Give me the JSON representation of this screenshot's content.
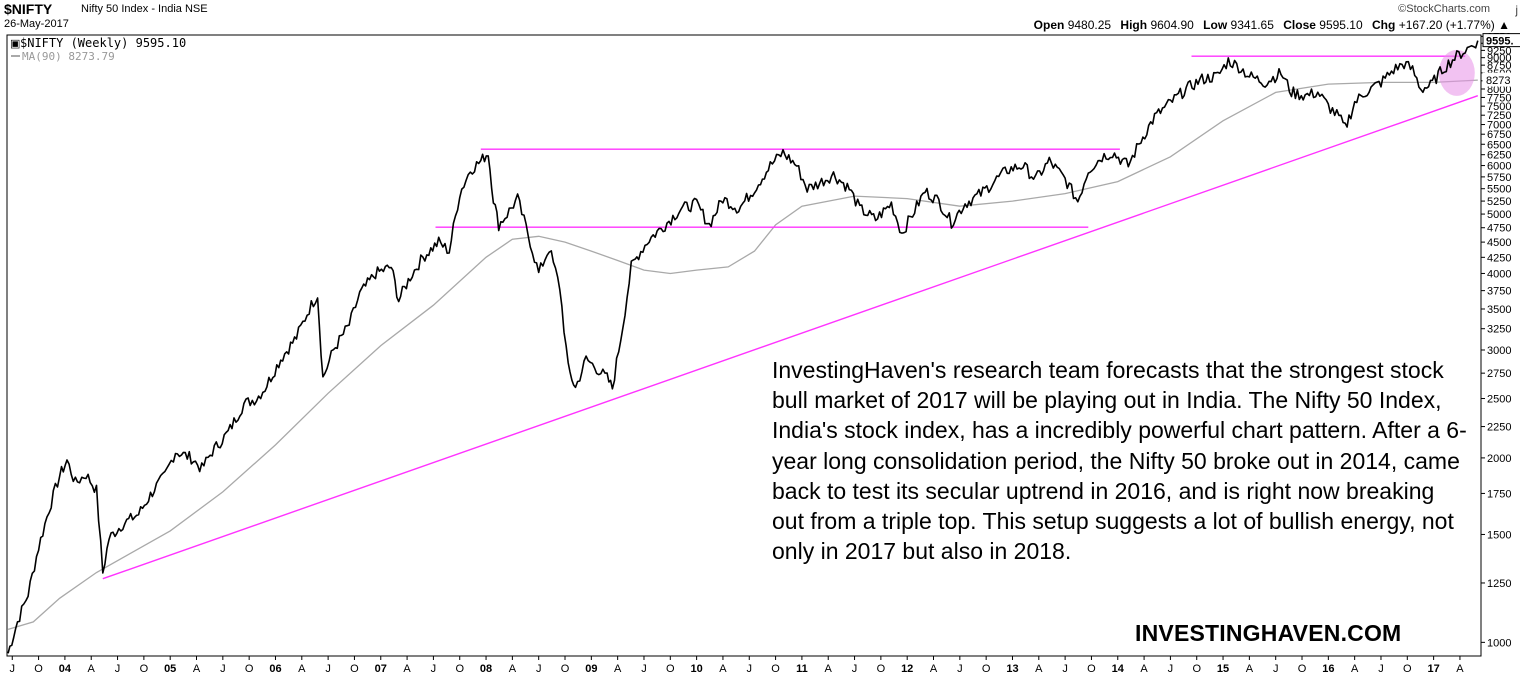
{
  "header": {
    "symbol": "$NIFTY",
    "name": "Nifty 50 Index - India",
    "exchange": "NSE",
    "date": "26-May-2017",
    "brand": "©StockCharts.com",
    "brand_cut": "j",
    "ohlc": {
      "open_label": "Open",
      "open": "9480.25",
      "high_label": "High",
      "high": "9604.90",
      "low_label": "Low",
      "low": "9341.65",
      "close_label": "Close",
      "close": "9595.10",
      "chg_label": "Chg",
      "chg": "+167.20 (+1.77%)",
      "chg_arrow": "▲"
    }
  },
  "legend": {
    "main": "$NIFTY (Weekly) 9595.10",
    "ma": "MA(90) 8273.79"
  },
  "colors": {
    "price": "#000000",
    "ma": "#a9a9a9",
    "trendline": "#ff33ff",
    "highlight": "#e88fe8"
  },
  "annotation": "InvestingHaven's research team forecasts that the strongest stock bull market of 2017 will be playing out in India. The Nifty 50 Index, India's stock index, has a incredibly powerful chart pattern. After a 6-year long consolidation period,  the Nifty 50 broke out in 2014, came back to test its secular uptrend in 2016, and is right now breaking out from a triple top. This setup suggests a lot of bullish energy, not only in 2017 but also in 2018.",
  "watermark": "INVESTINGHAVEN.COM",
  "chart_data": {
    "type": "line",
    "scale": "log",
    "ylim": [
      950,
      9800
    ],
    "xlim": [
      2003.45,
      2017.45
    ],
    "y_ticks": [
      1000,
      1250,
      1500,
      1750,
      2000,
      2250,
      2500,
      2750,
      3000,
      3250,
      3500,
      3750,
      4000,
      4250,
      4500,
      4750,
      5000,
      5250,
      5500,
      5750,
      6000,
      6250,
      6500,
      6750,
      7000,
      7250,
      7500,
      7750,
      8000,
      8250,
      8500,
      8750,
      9000,
      9250,
      9500,
      9750
    ],
    "y_tick_highlight": [
      "9595.",
      "8273"
    ],
    "x_ticks": [
      {
        "t": 2003.5,
        "label": "J"
      },
      {
        "t": 2003.75,
        "label": "O"
      },
      {
        "t": 2004.0,
        "label": "04",
        "major": true
      },
      {
        "t": 2004.25,
        "label": "A"
      },
      {
        "t": 2004.5,
        "label": "J"
      },
      {
        "t": 2004.75,
        "label": "O"
      },
      {
        "t": 2005.0,
        "label": "05",
        "major": true
      },
      {
        "t": 2005.25,
        "label": "A"
      },
      {
        "t": 2005.5,
        "label": "J"
      },
      {
        "t": 2005.75,
        "label": "O"
      },
      {
        "t": 2006.0,
        "label": "06",
        "major": true
      },
      {
        "t": 2006.25,
        "label": "A"
      },
      {
        "t": 2006.5,
        "label": "J"
      },
      {
        "t": 2006.75,
        "label": "O"
      },
      {
        "t": 2007.0,
        "label": "07",
        "major": true
      },
      {
        "t": 2007.25,
        "label": "A"
      },
      {
        "t": 2007.5,
        "label": "J"
      },
      {
        "t": 2007.75,
        "label": "O"
      },
      {
        "t": 2008.0,
        "label": "08",
        "major": true
      },
      {
        "t": 2008.25,
        "label": "A"
      },
      {
        "t": 2008.5,
        "label": "J"
      },
      {
        "t": 2008.75,
        "label": "O"
      },
      {
        "t": 2009.0,
        "label": "09",
        "major": true
      },
      {
        "t": 2009.25,
        "label": "A"
      },
      {
        "t": 2009.5,
        "label": "J"
      },
      {
        "t": 2009.75,
        "label": "O"
      },
      {
        "t": 2010.0,
        "label": "10",
        "major": true
      },
      {
        "t": 2010.25,
        "label": "A"
      },
      {
        "t": 2010.5,
        "label": "J"
      },
      {
        "t": 2010.75,
        "label": "O"
      },
      {
        "t": 2011.0,
        "label": "11",
        "major": true
      },
      {
        "t": 2011.25,
        "label": "A"
      },
      {
        "t": 2011.5,
        "label": "J"
      },
      {
        "t": 2011.75,
        "label": "O"
      },
      {
        "t": 2012.0,
        "label": "12",
        "major": true
      },
      {
        "t": 2012.25,
        "label": "A"
      },
      {
        "t": 2012.5,
        "label": "J"
      },
      {
        "t": 2012.75,
        "label": "O"
      },
      {
        "t": 2013.0,
        "label": "13",
        "major": true
      },
      {
        "t": 2013.25,
        "label": "A"
      },
      {
        "t": 2013.5,
        "label": "J"
      },
      {
        "t": 2013.75,
        "label": "O"
      },
      {
        "t": 2014.0,
        "label": "14",
        "major": true
      },
      {
        "t": 2014.25,
        "label": "A"
      },
      {
        "t": 2014.5,
        "label": "J"
      },
      {
        "t": 2014.75,
        "label": "O"
      },
      {
        "t": 2015.0,
        "label": "15",
        "major": true
      },
      {
        "t": 2015.25,
        "label": "A"
      },
      {
        "t": 2015.5,
        "label": "J"
      },
      {
        "t": 2015.75,
        "label": "O"
      },
      {
        "t": 2016.0,
        "label": "16",
        "major": true
      },
      {
        "t": 2016.25,
        "label": "A"
      },
      {
        "t": 2016.5,
        "label": "J"
      },
      {
        "t": 2016.75,
        "label": "O"
      },
      {
        "t": 2017.0,
        "label": "17",
        "major": true
      },
      {
        "t": 2017.25,
        "label": "A"
      }
    ],
    "series": [
      {
        "name": "$NIFTY (Weekly)",
        "points": [
          [
            2003.46,
            960
          ],
          [
            2003.55,
            1080
          ],
          [
            2003.65,
            1200
          ],
          [
            2003.75,
            1430
          ],
          [
            2003.85,
            1650
          ],
          [
            2003.95,
            1870
          ],
          [
            2004.02,
            1980
          ],
          [
            2004.1,
            1820
          ],
          [
            2004.2,
            1880
          ],
          [
            2004.3,
            1770
          ],
          [
            2004.36,
            1300
          ],
          [
            2004.42,
            1480
          ],
          [
            2004.55,
            1560
          ],
          [
            2004.7,
            1620
          ],
          [
            2004.85,
            1780
          ],
          [
            2004.95,
            1870
          ],
          [
            2005.05,
            2050
          ],
          [
            2005.2,
            2000
          ],
          [
            2005.3,
            1920
          ],
          [
            2005.4,
            2050
          ],
          [
            2005.55,
            2200
          ],
          [
            2005.7,
            2450
          ],
          [
            2005.82,
            2500
          ],
          [
            2005.9,
            2600
          ],
          [
            2006.05,
            2900
          ],
          [
            2006.2,
            3150
          ],
          [
            2006.32,
            3500
          ],
          [
            2006.4,
            3700
          ],
          [
            2006.45,
            2700
          ],
          [
            2006.55,
            3000
          ],
          [
            2006.7,
            3300
          ],
          [
            2006.8,
            3700
          ],
          [
            2006.95,
            4000
          ],
          [
            2007.1,
            4100
          ],
          [
            2007.17,
            3620
          ],
          [
            2007.28,
            3950
          ],
          [
            2007.4,
            4250
          ],
          [
            2007.55,
            4500
          ],
          [
            2007.65,
            4350
          ],
          [
            2007.75,
            5400
          ],
          [
            2007.85,
            5900
          ],
          [
            2007.95,
            6100
          ],
          [
            2008.02,
            6300
          ],
          [
            2008.07,
            5300
          ],
          [
            2008.12,
            4800
          ],
          [
            2008.2,
            5000
          ],
          [
            2008.3,
            5300
          ],
          [
            2008.42,
            4500
          ],
          [
            2008.5,
            4000
          ],
          [
            2008.6,
            4400
          ],
          [
            2008.7,
            3800
          ],
          [
            2008.78,
            2800
          ],
          [
            2008.85,
            2600
          ],
          [
            2008.95,
            2900
          ],
          [
            2009.05,
            2800
          ],
          [
            2009.15,
            2700
          ],
          [
            2009.2,
            2600
          ],
          [
            2009.3,
            3300
          ],
          [
            2009.38,
            4100
          ],
          [
            2009.45,
            4300
          ],
          [
            2009.55,
            4550
          ],
          [
            2009.7,
            4800
          ],
          [
            2009.85,
            5100
          ],
          [
            2010.0,
            5200
          ],
          [
            2010.12,
            4800
          ],
          [
            2010.25,
            5300
          ],
          [
            2010.4,
            5100
          ],
          [
            2010.55,
            5500
          ],
          [
            2010.7,
            6000
          ],
          [
            2010.82,
            6300
          ],
          [
            2010.95,
            6000
          ],
          [
            2011.05,
            5500
          ],
          [
            2011.15,
            5600
          ],
          [
            2011.3,
            5800
          ],
          [
            2011.45,
            5500
          ],
          [
            2011.55,
            5100
          ],
          [
            2011.7,
            4900
          ],
          [
            2011.85,
            5200
          ],
          [
            2011.95,
            4650
          ],
          [
            2012.05,
            5000
          ],
          [
            2012.17,
            5450
          ],
          [
            2012.3,
            5250
          ],
          [
            2012.42,
            4850
          ],
          [
            2012.55,
            5200
          ],
          [
            2012.7,
            5400
          ],
          [
            2012.85,
            5700
          ],
          [
            2012.95,
            5900
          ],
          [
            2013.1,
            6000
          ],
          [
            2013.22,
            5700
          ],
          [
            2013.35,
            6100
          ],
          [
            2013.5,
            5700
          ],
          [
            2013.62,
            5250
          ],
          [
            2013.72,
            5900
          ],
          [
            2013.85,
            6200
          ],
          [
            2013.95,
            6300
          ],
          [
            2014.1,
            6000
          ],
          [
            2014.22,
            6600
          ],
          [
            2014.35,
            7200
          ],
          [
            2014.5,
            7600
          ],
          [
            2014.65,
            8000
          ],
          [
            2014.8,
            8300
          ],
          [
            2014.95,
            8400
          ],
          [
            2015.05,
            8900
          ],
          [
            2015.15,
            8700
          ],
          [
            2015.25,
            8400
          ],
          [
            2015.4,
            8200
          ],
          [
            2015.55,
            8500
          ],
          [
            2015.65,
            7900
          ],
          [
            2015.78,
            7800
          ],
          [
            2015.9,
            7900
          ],
          [
            2016.0,
            7500
          ],
          [
            2016.1,
            7200
          ],
          [
            2016.16,
            6900
          ],
          [
            2016.25,
            7600
          ],
          [
            2016.35,
            7900
          ],
          [
            2016.5,
            8200
          ],
          [
            2016.62,
            8600
          ],
          [
            2016.72,
            8800
          ],
          [
            2016.8,
            8600
          ],
          [
            2016.88,
            8000
          ],
          [
            2016.97,
            8100
          ],
          [
            2017.08,
            8600
          ],
          [
            2017.2,
            9000
          ],
          [
            2017.32,
            9300
          ],
          [
            2017.42,
            9595
          ]
        ]
      },
      {
        "name": "MA(90)",
        "points": [
          [
            2003.46,
            1050
          ],
          [
            2003.7,
            1080
          ],
          [
            2003.95,
            1180
          ],
          [
            2004.3,
            1300
          ],
          [
            2004.6,
            1390
          ],
          [
            2005.0,
            1520
          ],
          [
            2005.5,
            1760
          ],
          [
            2006.0,
            2100
          ],
          [
            2006.5,
            2550
          ],
          [
            2007.0,
            3050
          ],
          [
            2007.5,
            3550
          ],
          [
            2008.0,
            4250
          ],
          [
            2008.25,
            4550
          ],
          [
            2008.5,
            4600
          ],
          [
            2008.75,
            4500
          ],
          [
            2009.0,
            4350
          ],
          [
            2009.25,
            4200
          ],
          [
            2009.5,
            4050
          ],
          [
            2009.75,
            4000
          ],
          [
            2010.0,
            4050
          ],
          [
            2010.3,
            4100
          ],
          [
            2010.55,
            4350
          ],
          [
            2010.75,
            4800
          ],
          [
            2011.0,
            5150
          ],
          [
            2011.5,
            5350
          ],
          [
            2012.0,
            5300
          ],
          [
            2012.5,
            5150
          ],
          [
            2013.0,
            5250
          ],
          [
            2013.5,
            5400
          ],
          [
            2014.0,
            5650
          ],
          [
            2014.5,
            6200
          ],
          [
            2015.0,
            7100
          ],
          [
            2015.5,
            7900
          ],
          [
            2016.0,
            8150
          ],
          [
            2016.5,
            8200
          ],
          [
            2017.0,
            8200
          ],
          [
            2017.42,
            8273
          ]
        ]
      }
    ],
    "trendlines": [
      {
        "points": [
          [
            2004.36,
            1270
          ],
          [
            2017.42,
            7800
          ]
        ]
      },
      {
        "points": [
          [
            2007.52,
            4760
          ],
          [
            2013.72,
            4760
          ]
        ]
      },
      {
        "points": [
          [
            2007.95,
            6380
          ],
          [
            2014.02,
            6380
          ]
        ]
      },
      {
        "points": [
          [
            2014.7,
            9050
          ],
          [
            2017.3,
            9050
          ]
        ]
      }
    ],
    "highlight": {
      "center": [
        2017.22,
        8500
      ]
    }
  }
}
